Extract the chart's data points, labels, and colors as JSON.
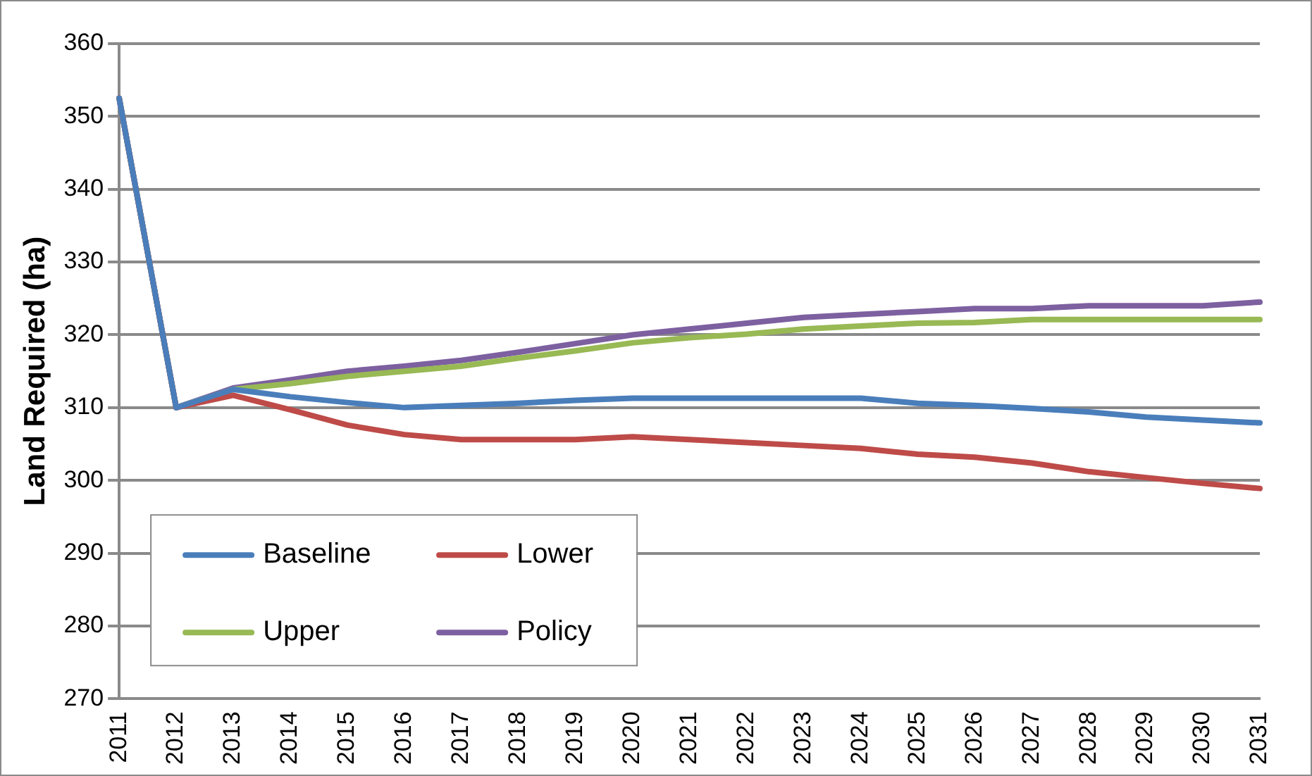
{
  "chart_data": {
    "type": "line",
    "ylabel": "Land Required (ha)",
    "categories": [
      "2011",
      "2012",
      "2013",
      "2014",
      "2015",
      "2016",
      "2017",
      "2018",
      "2019",
      "2020",
      "2021",
      "2022",
      "2023",
      "2024",
      "2025",
      "2026",
      "2027",
      "2028",
      "2029",
      "2030",
      "2031"
    ],
    "series": [
      {
        "name": "Baseline",
        "color": "#4a7ebb",
        "values": [
          352.5,
          310,
          312.5,
          311.5,
          310.7,
          310,
          310.3,
          310.6,
          311,
          311.3,
          311.3,
          311.3,
          311.3,
          311.3,
          310.6,
          310.3,
          309.9,
          309.4,
          308.7,
          308.3,
          307.9
        ]
      },
      {
        "name": "Lower",
        "color": "#be4b48",
        "values": [
          352.5,
          310,
          311.7,
          309.7,
          307.6,
          306.3,
          305.6,
          305.6,
          305.6,
          306,
          305.6,
          305.2,
          304.8,
          304.4,
          303.6,
          303.2,
          302.4,
          301.2,
          300.4,
          299.6,
          298.9
        ]
      },
      {
        "name": "Upper",
        "color": "#98b954",
        "values": [
          352.5,
          310,
          312.5,
          313.3,
          314.3,
          315,
          315.7,
          316.8,
          317.8,
          318.9,
          319.6,
          320.1,
          320.8,
          321.2,
          321.6,
          321.7,
          322.1,
          322.1,
          322.1,
          322.1,
          322.1
        ]
      },
      {
        "name": "Policy",
        "color": "#7d60a0",
        "values": [
          352.5,
          310,
          312.7,
          313.8,
          315,
          315.7,
          316.5,
          317.6,
          318.8,
          320,
          320.8,
          321.6,
          322.4,
          322.8,
          323.2,
          323.6,
          323.6,
          324,
          324,
          324,
          324.5
        ]
      }
    ],
    "ylim": [
      270,
      360
    ],
    "yticks": [
      270,
      280,
      290,
      300,
      310,
      320,
      330,
      340,
      350,
      360
    ],
    "grid": "y",
    "legend": "bottom left",
    "marker": "none",
    "line_style": "solid"
  }
}
